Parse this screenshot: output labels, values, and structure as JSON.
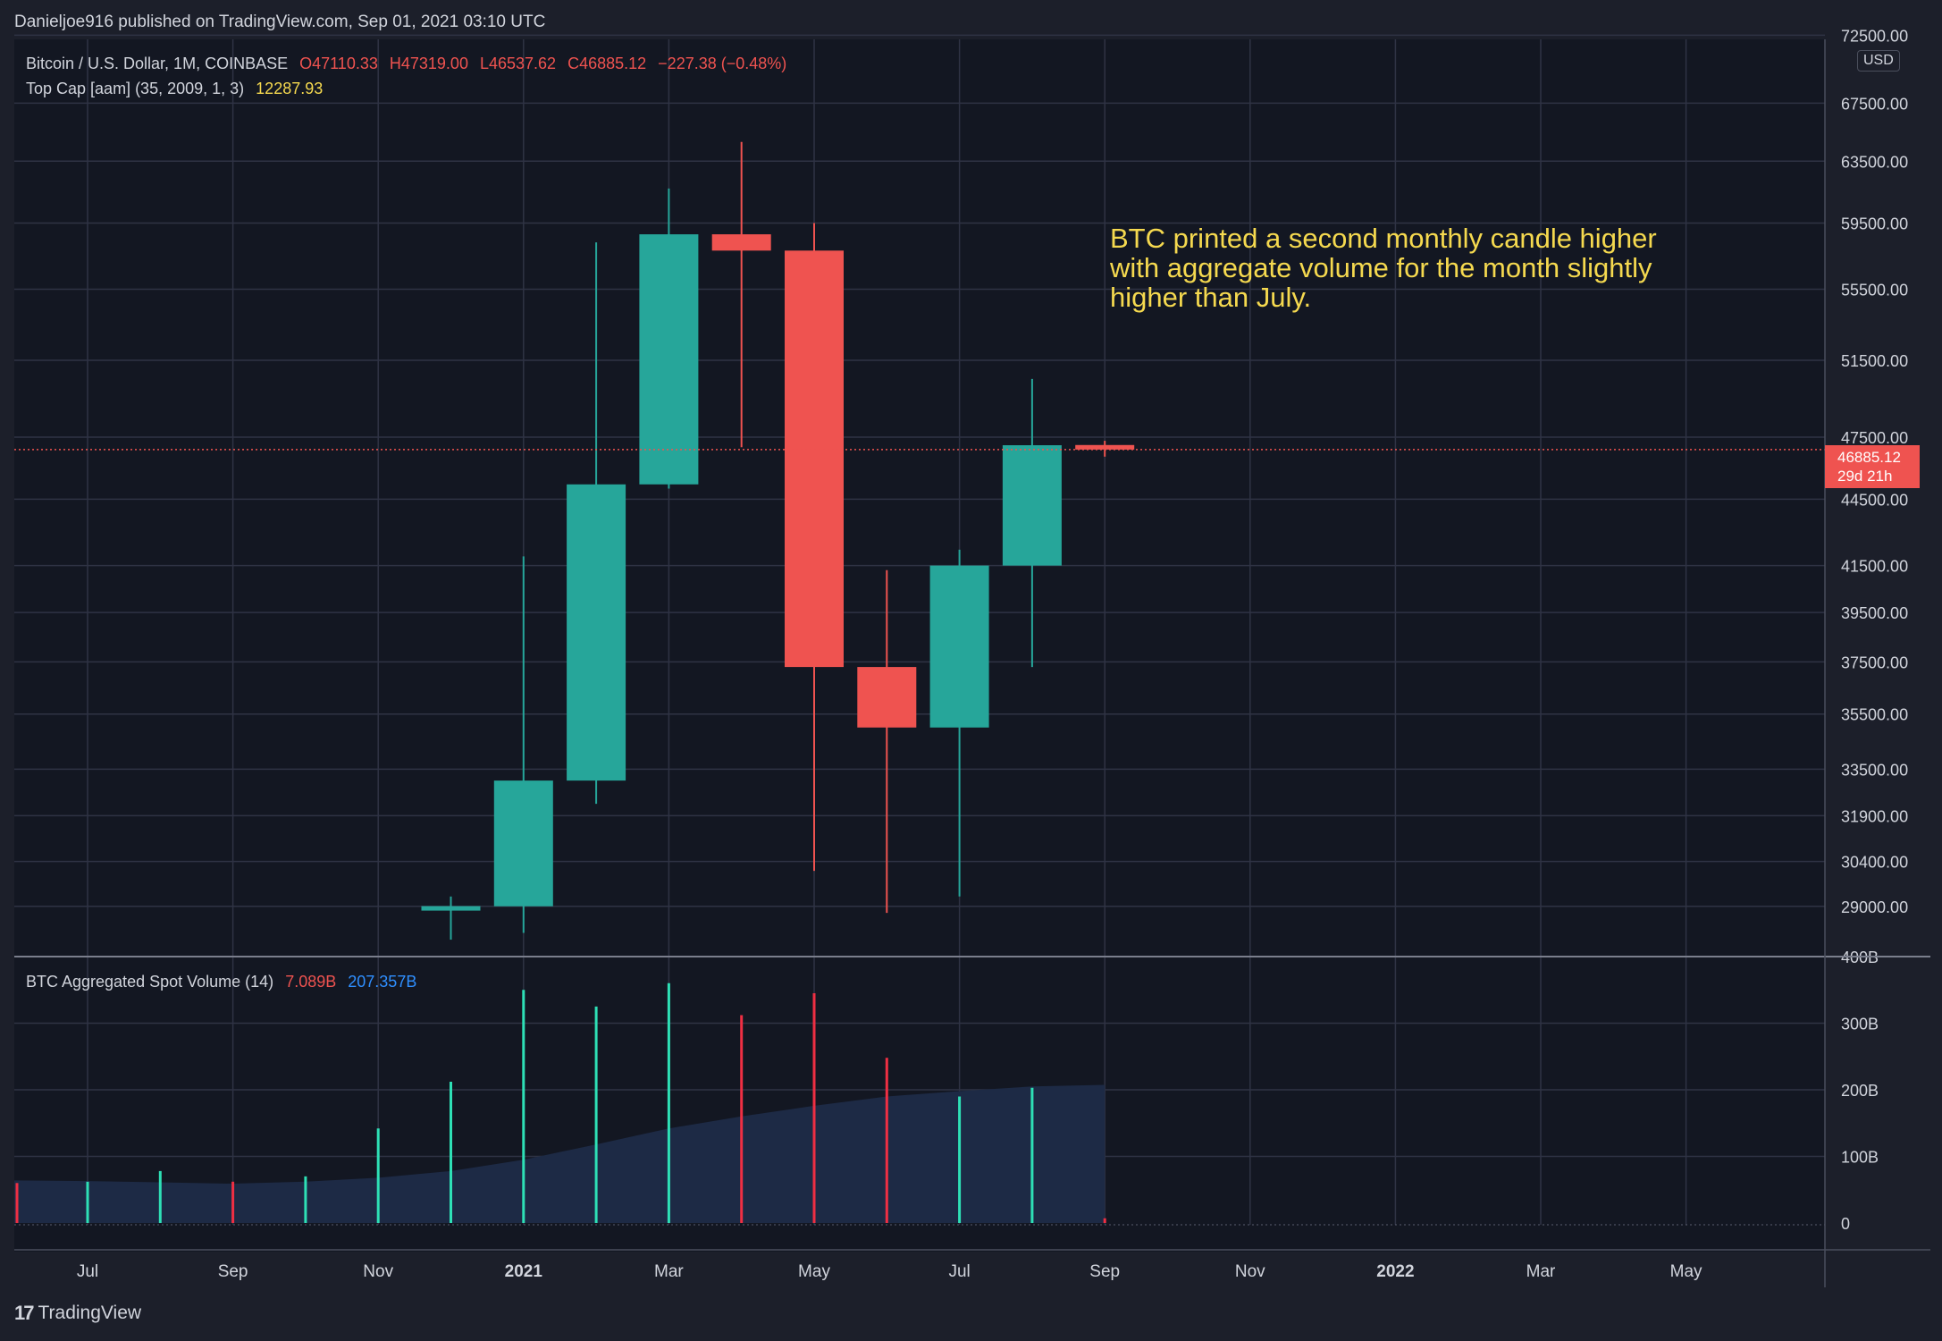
{
  "header": {
    "published_by": "Danieljoe916 published on TradingView.com, Sep 01, 2021 03:10 UTC"
  },
  "main_legend": {
    "symbol": "Bitcoin / U.S. Dollar, 1M, COINBASE",
    "open": "O47110.33",
    "high": "H47319.00",
    "low": "L46537.62",
    "close": "C46885.12",
    "change": "−227.38 (−0.48%)"
  },
  "indicator_legend": {
    "name": "Top Cap [aam] (35, 2009, 1, 3)",
    "value": "12287.93"
  },
  "volume_legend": {
    "name": "BTC Aggregated Spot Volume (14)",
    "value1": "7.089B",
    "value2": "207.357B"
  },
  "annotation": "BTC printed a second monthly candle higher\nwith aggregate volume for the month slightly\nhigher than July.",
  "price_axis": {
    "currency": "USD",
    "ticks": [
      "72500.00",
      "67500.00",
      "63500.00",
      "59500.00",
      "55500.00",
      "51500.00",
      "47500.00",
      "44500.00",
      "41500.00",
      "39500.00",
      "37500.00",
      "35500.00",
      "33500.00",
      "31900.00",
      "30400.00",
      "29000.00"
    ]
  },
  "current_price": {
    "value": "46885.12",
    "countdown": "29d 21h"
  },
  "volume_axis": {
    "ticks": [
      "400B",
      "300B",
      "200B",
      "100B",
      "0"
    ]
  },
  "time_axis": {
    "labels": [
      "Jul",
      "Sep",
      "Nov",
      "2021",
      "Mar",
      "May",
      "Jul",
      "Sep",
      "Nov",
      "2022",
      "Mar",
      "May"
    ]
  },
  "branding": {
    "logo_text": "TradingView",
    "logo_mark": "17"
  },
  "colors": {
    "background": "#1c1f2a",
    "up": "#26a69a",
    "down": "#ef5350",
    "up_volume": "#2ee0b6",
    "down_volume": "#ef2f43",
    "annotation": "#f5d94f",
    "volume_ma_fill": "#1d2a45",
    "grid": "#2f3344"
  },
  "chart_data": [
    {
      "type": "candlestick",
      "title": "Bitcoin / U.S. Dollar, 1M, COINBASE",
      "x": [
        "2020-12",
        "2021-01",
        "2021-02",
        "2021-03",
        "2021-04",
        "2021-05",
        "2021-06",
        "2021-07",
        "2021-08",
        "2021-09"
      ],
      "open": [
        28950,
        29000,
        33100,
        45200,
        58800,
        57800,
        37300,
        35000,
        41500,
        47110.33
      ],
      "high": [
        29300,
        41900,
        58300,
        61700,
        64800,
        59500,
        41300,
        42200,
        50500,
        47319.0
      ],
      "low": [
        28000,
        28200,
        32300,
        45000,
        47000,
        30100,
        28800,
        29300,
        37300,
        46537.62
      ],
      "close": [
        28950,
        33100,
        45200,
        58800,
        57800,
        37300,
        35000,
        41500,
        47100,
        46885.12
      ],
      "y_scale": "log",
      "ylim": [
        28000,
        72500
      ],
      "grid": true
    },
    {
      "type": "bar",
      "title": "BTC Aggregated Spot Volume (14)",
      "x": [
        "2020-06",
        "2020-07",
        "2020-08",
        "2020-09",
        "2020-10",
        "2020-11",
        "2020-12",
        "2021-01",
        "2021-02",
        "2021-03",
        "2021-04",
        "2021-05",
        "2021-06",
        "2021-07",
        "2021-08",
        "2021-09"
      ],
      "values": [
        60,
        62,
        78,
        62,
        70,
        142,
        212,
        350,
        325,
        360,
        312,
        345,
        248,
        190,
        203,
        7.089
      ],
      "direction": [
        "down",
        "up",
        "up",
        "down",
        "up",
        "up",
        "up",
        "up",
        "up",
        "up",
        "down",
        "down",
        "down",
        "up",
        "up",
        "down"
      ],
      "series": [
        {
          "name": "BTC Aggregated Spot Volume (14)",
          "values": [
            60,
            62,
            78,
            62,
            70,
            142,
            212,
            350,
            325,
            360,
            312,
            345,
            248,
            190,
            203,
            7.089
          ]
        },
        {
          "name": "MA",
          "values": [
            64,
            63,
            61,
            59,
            62,
            68,
            78,
            95,
            118,
            142,
            160,
            176,
            190,
            198,
            205,
            207.357
          ]
        }
      ],
      "ylim": [
        0,
        400
      ],
      "grid": true
    }
  ]
}
